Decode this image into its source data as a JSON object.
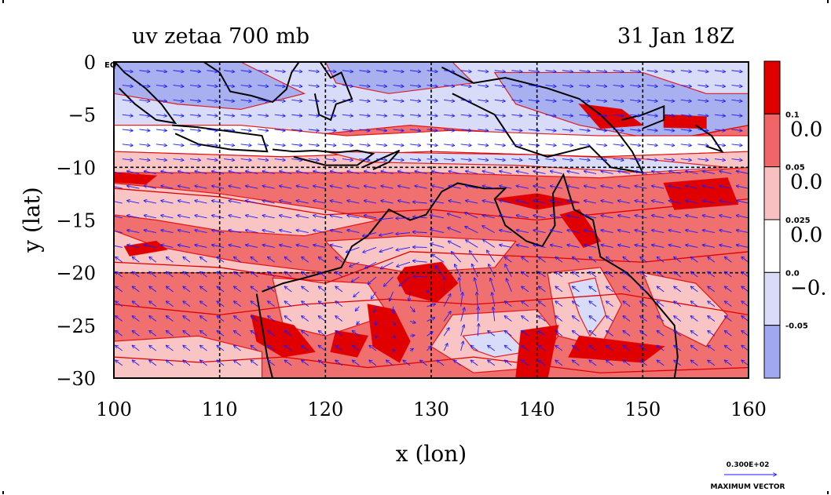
{
  "chart_data": {
    "type": "heatmap",
    "title": "uv zetaa 700 mb",
    "date_label": "31 Jan 18Z",
    "xlabel": "x (lon)",
    "ylabel": "y (lat)",
    "xlim": [
      100,
      160
    ],
    "ylim": [
      -30,
      0
    ],
    "x_ticks": [
      "100",
      "110",
      "120",
      "130",
      "140",
      "150",
      "160"
    ],
    "y_ticks": [
      "0",
      "−5",
      "−10",
      "−15",
      "−20",
      "−25",
      "−30"
    ],
    "eq_label": "EQ",
    "grid_lons": [
      110,
      120,
      130,
      140,
      150
    ],
    "grid_lats": [
      -10,
      -20
    ],
    "colorbar": {
      "levels_small": [
        "0.1",
        "0.05",
        "0.025",
        "0.0",
        "-0.05"
      ],
      "levels_big": [
        "0.0",
        "0.0",
        "0.0",
        "−0."
      ],
      "colors": [
        "#e00000",
        "#f06666",
        "#f8c0c0",
        "#ffffff",
        "#d8dcf8",
        "#a0a8f0"
      ]
    },
    "field_colors": {
      "strong_pos": "#e00000",
      "pos": "#f07070",
      "weak_pos": "#f9c4c4",
      "neutral": "#ffffff",
      "weak_neg": "#d8dcf8",
      "neg": "#a8b0f0",
      "contour": "#e00000",
      "coast": "#000000",
      "vector": "#1a1aff"
    },
    "max_vector": {
      "value": "0.300E+02",
      "label": "MAXIMUM VECTOR"
    }
  }
}
